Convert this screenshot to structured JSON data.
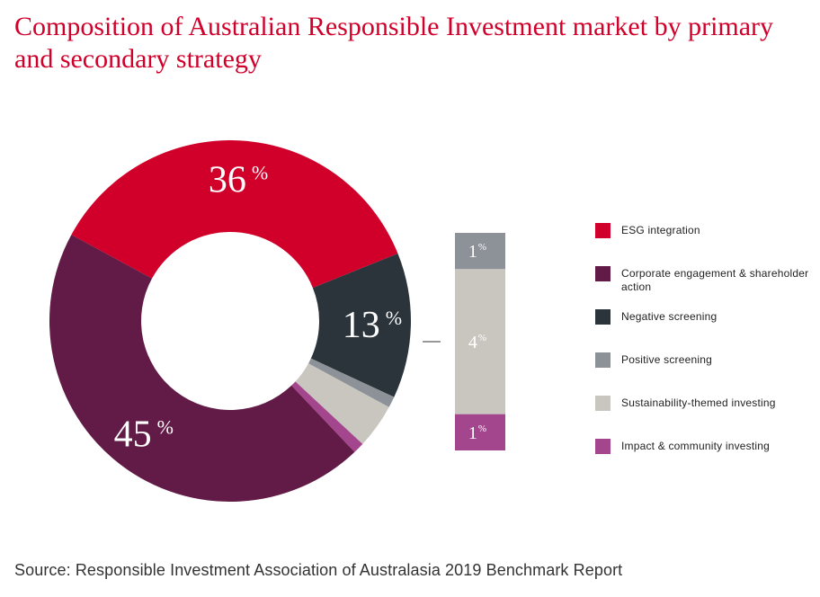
{
  "title": "Composition of Australian Responsible Investment market by primary and secondary strategy",
  "source": "Source: Responsible Investment Association of Australasia 2019 Benchmark Report",
  "colors": {
    "esg_integration": "#d0002b",
    "corporate_engagement": "#621a46",
    "negative_screening": "#2b343b",
    "positive_screening": "#8c9297",
    "sustainability_themed": "#c9c6bf",
    "impact_community": "#a4468e"
  },
  "chart_data": {
    "type": "pie",
    "subtype": "donut-with-breakout-bar",
    "slices": [
      {
        "name": "ESG integration",
        "value": 36,
        "label": "36",
        "color": "#d0002b"
      },
      {
        "name": "Negative screening",
        "value": 13,
        "label": "13",
        "color": "#2b343b"
      },
      {
        "name": "Positive screening",
        "value": 1,
        "color": "#8c9297"
      },
      {
        "name": "Sustainability-themed investing",
        "value": 4,
        "color": "#c9c6bf"
      },
      {
        "name": "Impact & community investing",
        "value": 1,
        "color": "#a4468e"
      },
      {
        "name": "Corporate engagement & shareholder action",
        "value": 45,
        "label": "45",
        "color": "#621a46"
      }
    ],
    "breakout_bar": [
      {
        "name": "Positive screening",
        "value": 1,
        "label": "1",
        "color": "#8c9297"
      },
      {
        "name": "Sustainability-themed investing",
        "value": 4,
        "label": "4",
        "color": "#c9c6bf"
      },
      {
        "name": "Impact & community investing",
        "value": 1,
        "label": "1",
        "color": "#a4468e"
      }
    ],
    "unit": "%",
    "legend": {
      "placement": "right",
      "entries": [
        {
          "label": "ESG integration",
          "color": "#d0002b"
        },
        {
          "label": "Corporate engagement & shareholder action",
          "color": "#621a46"
        },
        {
          "label": "Negative screening",
          "color": "#2b343b"
        },
        {
          "label": "Positive screening",
          "color": "#8c9297"
        },
        {
          "label": "Sustainability-themed investing",
          "color": "#c9c6bf"
        },
        {
          "label": "Impact & community investing",
          "color": "#a4468e"
        }
      ]
    }
  }
}
